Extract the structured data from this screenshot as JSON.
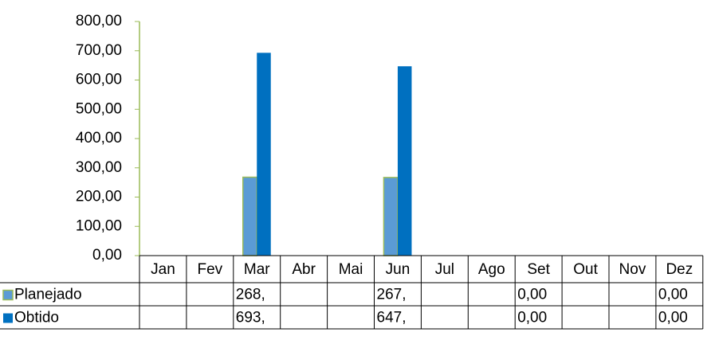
{
  "chart_data": {
    "type": "bar",
    "categories": [
      "Jan",
      "Fev",
      "Mar",
      "Abr",
      "Mai",
      "Jun",
      "Jul",
      "Ago",
      "Set",
      "Out",
      "Nov",
      "Dez"
    ],
    "series": [
      {
        "name": "Planejado",
        "color": "#5b9bd5",
        "values": [
          null,
          null,
          268,
          null,
          null,
          267,
          null,
          null,
          0,
          null,
          null,
          0
        ],
        "value_labels": [
          null,
          null,
          "268,",
          null,
          null,
          "267,",
          null,
          null,
          "0,00",
          null,
          null,
          "0,00"
        ]
      },
      {
        "name": "Obtido",
        "color": "#0070c0",
        "values": [
          null,
          null,
          693,
          null,
          null,
          647,
          null,
          null,
          0,
          null,
          null,
          0
        ],
        "value_labels": [
          null,
          null,
          "693,",
          null,
          null,
          "647,",
          null,
          null,
          "0,00",
          null,
          null,
          "0,00"
        ]
      }
    ],
    "ylim": [
      0,
      800
    ],
    "yticks": [
      {
        "value": 0,
        "label": "0,00"
      },
      {
        "value": 100,
        "label": "100,00"
      },
      {
        "value": 200,
        "label": "200,00"
      },
      {
        "value": 300,
        "label": "300,00"
      },
      {
        "value": 400,
        "label": "400,00"
      },
      {
        "value": 500,
        "label": "500,00"
      },
      {
        "value": 600,
        "label": "600,00"
      },
      {
        "value": 700,
        "label": "700,00"
      },
      {
        "value": 800,
        "label": "800,00"
      }
    ],
    "data_table": true
  }
}
